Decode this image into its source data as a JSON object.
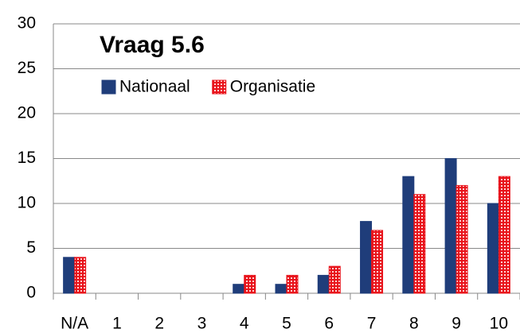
{
  "chart_data": {
    "type": "bar",
    "title": "Vraag 5.6",
    "categories": [
      "N/A",
      "1",
      "2",
      "3",
      "4",
      "5",
      "6",
      "7",
      "8",
      "9",
      "10"
    ],
    "series": [
      {
        "name": "Nationaal",
        "color": "#1f3d7a",
        "values": [
          4,
          0,
          0,
          0,
          1,
          1,
          2,
          8,
          13,
          15,
          10
        ]
      },
      {
        "name": "Organisatie",
        "color": "#e8141c",
        "values": [
          4,
          0,
          0,
          0,
          2,
          2,
          3,
          7,
          11,
          12,
          13
        ]
      }
    ],
    "ylim": [
      0,
      30
    ],
    "yticks": [
      0,
      5,
      10,
      15,
      20,
      25,
      30
    ],
    "grid": true,
    "legend": "top-left"
  }
}
